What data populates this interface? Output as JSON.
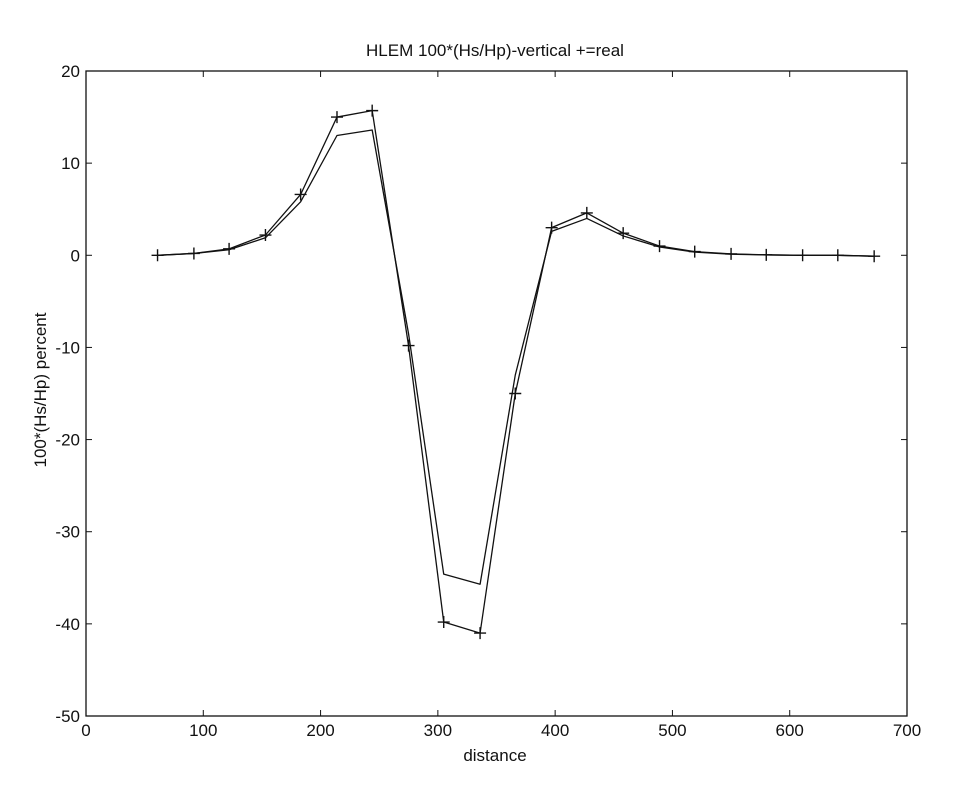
{
  "chart_data": {
    "type": "line",
    "title": "HLEM  100*(Hs/Hp)-vertical  +=real",
    "xlabel": "distance",
    "ylabel": "100*(Hs/Hp) percent",
    "xlim": [
      0,
      700
    ],
    "ylim": [
      -50,
      20
    ],
    "xticks": [
      0,
      100,
      200,
      300,
      400,
      500,
      600,
      700
    ],
    "yticks": [
      -50,
      -40,
      -30,
      -20,
      -10,
      0,
      10,
      20
    ],
    "grid": false,
    "legend": "none",
    "x": [
      61,
      92,
      122,
      153,
      183,
      214,
      244,
      275,
      305,
      336,
      366,
      397,
      427,
      458,
      489,
      519,
      550,
      580,
      611,
      641,
      672
    ],
    "series": [
      {
        "marker": "+",
        "color": "#111111",
        "values": [
          0.0,
          0.2,
          0.7,
          2.2,
          6.6,
          15.0,
          15.7,
          -9.8,
          -39.8,
          -41.0,
          -15.0,
          3.0,
          4.6,
          2.4,
          1.0,
          0.4,
          0.15,
          0.05,
          0.0,
          0.0,
          -0.1
        ]
      },
      {
        "marker": "none",
        "color": "#111111",
        "values": [
          0.0,
          0.2,
          0.6,
          1.9,
          5.8,
          13.0,
          13.6,
          -8.5,
          -34.6,
          -35.7,
          -13.0,
          2.6,
          4.0,
          2.1,
          0.9,
          0.35,
          0.12,
          0.04,
          0.0,
          0.0,
          -0.1
        ]
      }
    ]
  }
}
